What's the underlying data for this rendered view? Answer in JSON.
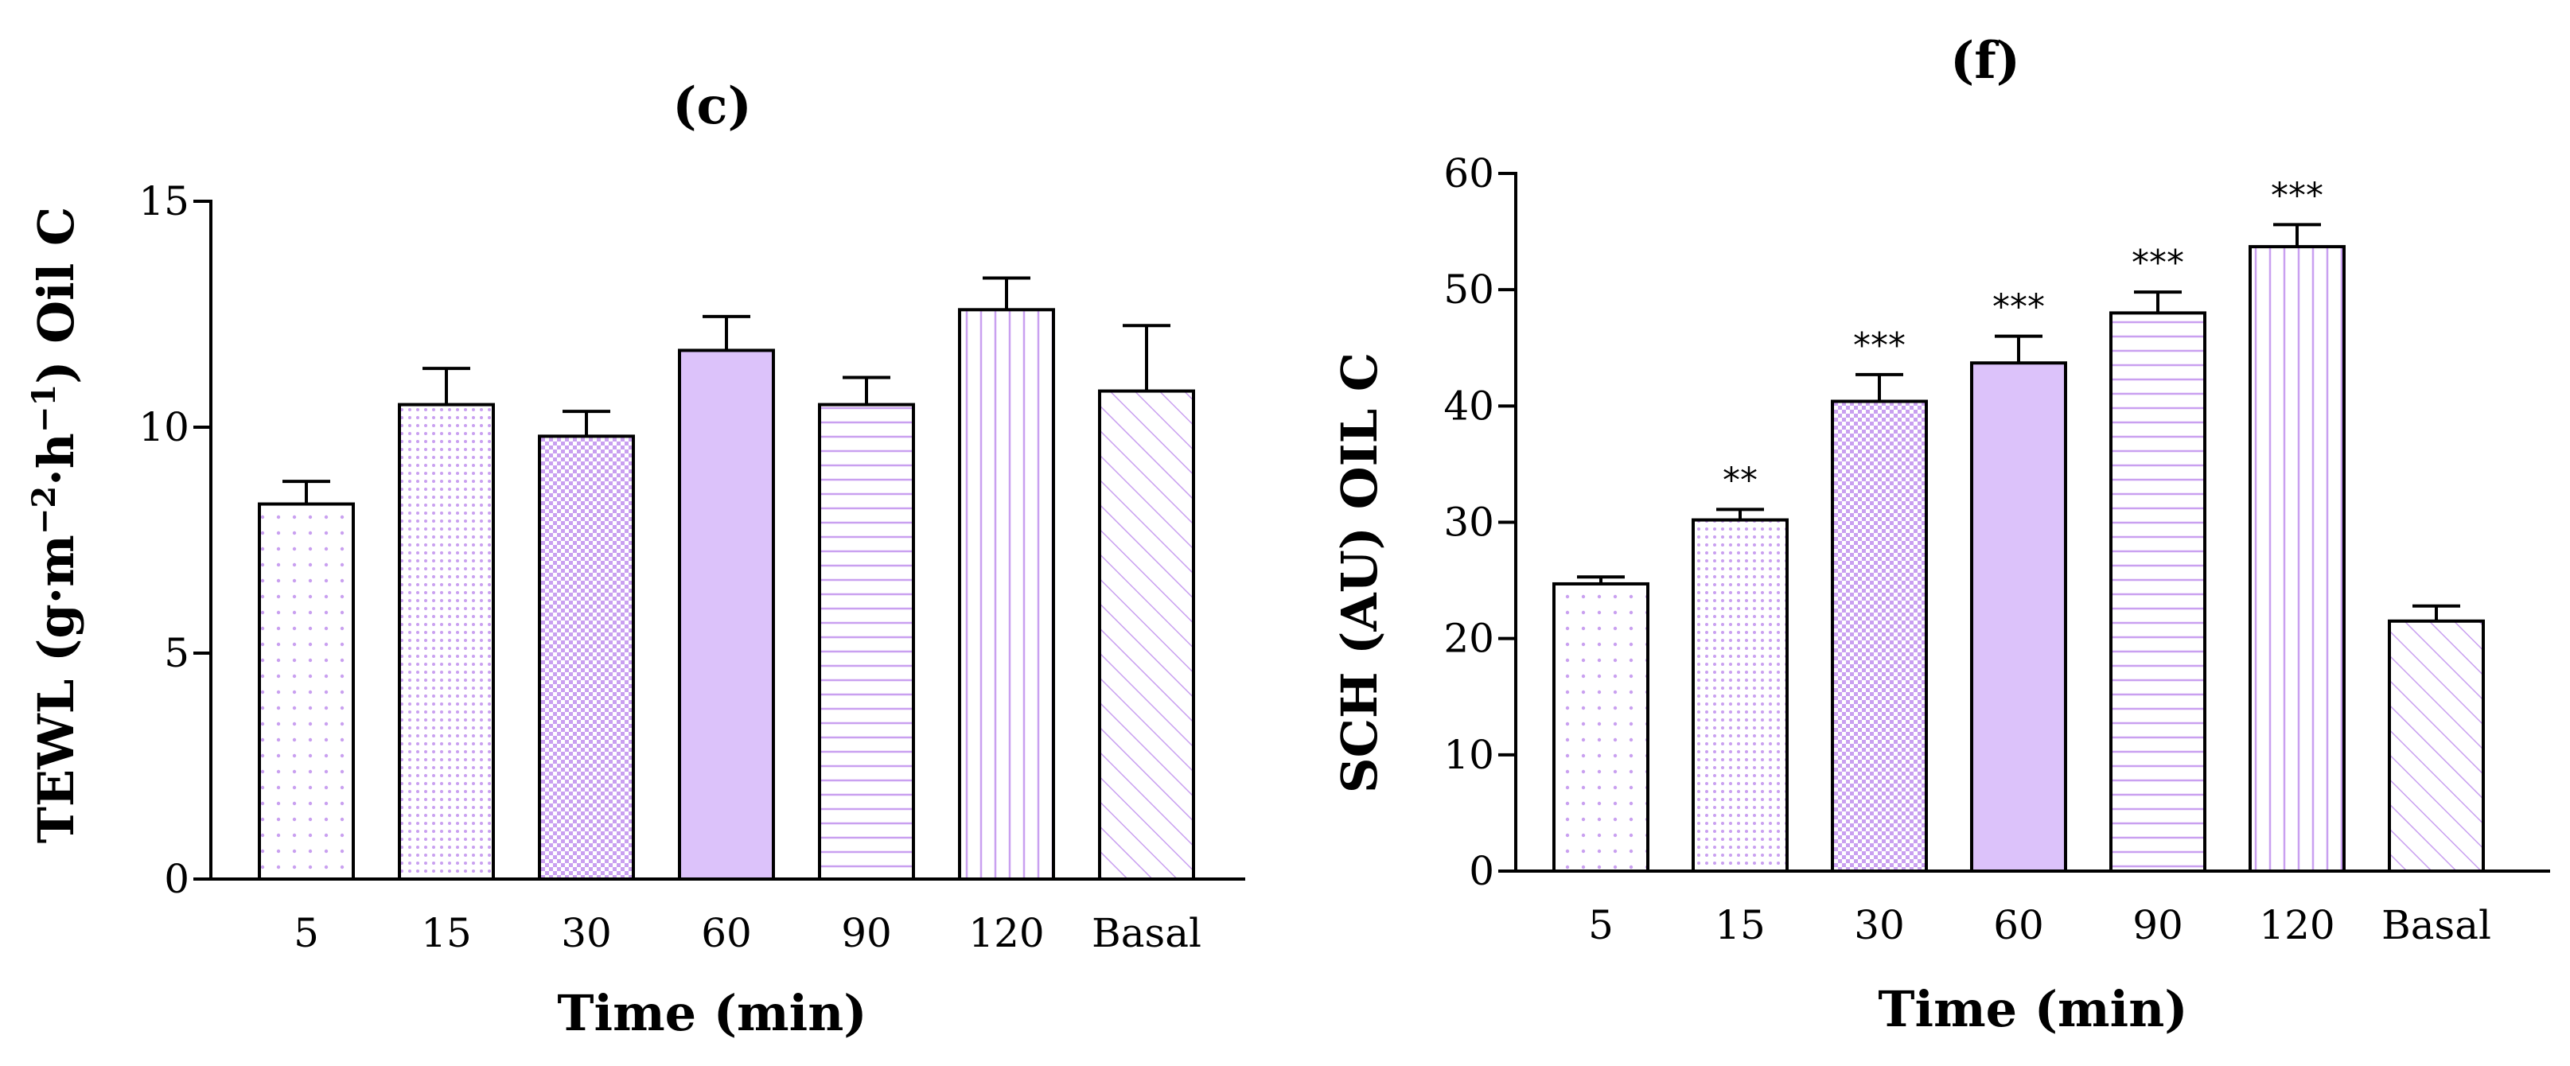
{
  "pattern_color": "#c9a0f0",
  "fill_color": "#dcc2fa",
  "chart_data": [
    {
      "type": "bar",
      "panel_label": "(c)",
      "title": "(c)",
      "xlabel": "Time (min)",
      "ylabel": "TEWL (g·m−2·h−1) Oil C",
      "ylabel_parts": {
        "main": "TEWL (g·m",
        "sup1": "−2",
        "mid": "·h",
        "sup2": "−1",
        "end": ") Oil C"
      },
      "ylim": [
        0,
        15
      ],
      "yticks": [
        0,
        5,
        10,
        15
      ],
      "categories": [
        "5",
        "15",
        "30",
        "60",
        "90",
        "120",
        "Basal"
      ],
      "values": [
        8.3,
        10.5,
        9.8,
        11.7,
        10.5,
        12.6,
        10.8
      ],
      "errors": [
        0.5,
        0.8,
        0.55,
        0.75,
        0.6,
        0.7,
        1.45
      ],
      "significance": [
        "",
        "",
        "",
        "",
        "",
        "",
        ""
      ],
      "patterns": [
        "dots",
        "finedots",
        "check",
        "solid",
        "hlines",
        "vlines",
        "diag"
      ]
    },
    {
      "type": "bar",
      "panel_label": "(f)",
      "title": "(f)",
      "xlabel": "Time (min)",
      "ylabel": "SCH (AU) OIL C",
      "ylim": [
        0,
        60
      ],
      "yticks": [
        0,
        10,
        20,
        30,
        40,
        50,
        60
      ],
      "categories": [
        "5",
        "15",
        "30",
        "60",
        "90",
        "120",
        "Basal"
      ],
      "values": [
        24.7,
        30.2,
        40.4,
        43.7,
        48.0,
        53.7,
        21.5
      ],
      "errors": [
        0.6,
        0.9,
        2.3,
        2.3,
        1.8,
        1.9,
        1.3
      ],
      "significance": [
        "",
        "**",
        "***",
        "***",
        "***",
        "***",
        ""
      ],
      "patterns": [
        "dots",
        "finedots",
        "check",
        "solid",
        "hlines",
        "vlines",
        "diag"
      ]
    }
  ]
}
